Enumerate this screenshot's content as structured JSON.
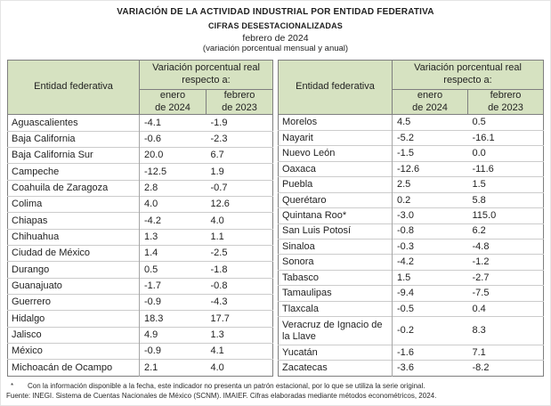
{
  "title": {
    "line1": "VARIACIÓN DE LA ACTIVIDAD INDUSTRIAL POR ENTIDAD FEDERATIVA",
    "line2": "CIFRAS DESESTACIONALIZADAS",
    "line3": "febrero de 2024",
    "line4": "(variación porcentual mensual y anual)"
  },
  "colors": {
    "header_bg": "#d6e2c1",
    "outer_border": "#7f7f7f",
    "row_divider": "#cccccc",
    "col_divider": "#a6a6a6"
  },
  "columns": {
    "entity": "Entidad federativa",
    "group": "Variación porcentual real\nrespecto a:",
    "month1": "enero\nde 2024",
    "month2": "febrero\nde 2023"
  },
  "tables": [
    {
      "name": "left",
      "rows": [
        [
          "Aguascalientes",
          "-4.1",
          "-1.9"
        ],
        [
          "Baja California",
          "-0.6",
          "-2.3"
        ],
        [
          "Baja California Sur",
          "20.0",
          "6.7"
        ],
        [
          "Campeche",
          "-12.5",
          "1.9"
        ],
        [
          "Coahuila de Zaragoza",
          "2.8",
          "-0.7"
        ],
        [
          "Colima",
          "4.0",
          "12.6"
        ],
        [
          "Chiapas",
          "-4.2",
          "4.0"
        ],
        [
          "Chihuahua",
          "1.3",
          "1.1"
        ],
        [
          "Ciudad de México",
          "1.4",
          "-2.5"
        ],
        [
          "Durango",
          "0.5",
          "-1.8"
        ],
        [
          "Guanajuato",
          "-1.7",
          "-0.8"
        ],
        [
          "Guerrero",
          "-0.9",
          "-4.3"
        ],
        [
          "Hidalgo",
          "18.3",
          "17.7"
        ],
        [
          "Jalisco",
          "4.9",
          "1.3"
        ],
        [
          "México",
          "-0.9",
          "4.1"
        ],
        [
          "Michoacán de Ocampo",
          "2.1",
          "4.0"
        ]
      ]
    },
    {
      "name": "right",
      "rows": [
        [
          "Morelos",
          "4.5",
          "0.5"
        ],
        [
          "Nayarit",
          "-5.2",
          "-16.1"
        ],
        [
          "Nuevo León",
          "-1.5",
          "0.0"
        ],
        [
          "Oaxaca",
          "-12.6",
          "-11.6"
        ],
        [
          "Puebla",
          "2.5",
          "1.5"
        ],
        [
          "Querétaro",
          "0.2",
          "5.8"
        ],
        [
          "Quintana Roo*",
          "-3.0",
          "115.0"
        ],
        [
          "San Luis Potosí",
          "-0.8",
          "6.2"
        ],
        [
          "Sinaloa",
          "-0.3",
          "-4.8"
        ],
        [
          "Sonora",
          "-4.2",
          "-1.2"
        ],
        [
          "Tabasco",
          "1.5",
          "-2.7"
        ],
        [
          "Tamaulipas",
          "-9.4",
          "-7.5"
        ],
        [
          "Tlaxcala",
          "-0.5",
          "0.4"
        ],
        [
          "Veracruz de Ignacio de la Llave",
          "-0.2",
          "8.3"
        ],
        [
          "Yucatán",
          "-1.6",
          "7.1"
        ],
        [
          "Zacatecas",
          "-3.6",
          "-8.2"
        ]
      ]
    }
  ],
  "footnotes": {
    "marker": "*",
    "note": "Con la información disponible a la fecha, este indicador no presenta un patrón estacional, por lo que se utiliza la serie original.",
    "source": "Fuente: INEGI. Sistema de Cuentas Nacionales de México (SCNM). IMAIEF. Cifras elaboradas mediante métodos econométricos, 2024."
  }
}
